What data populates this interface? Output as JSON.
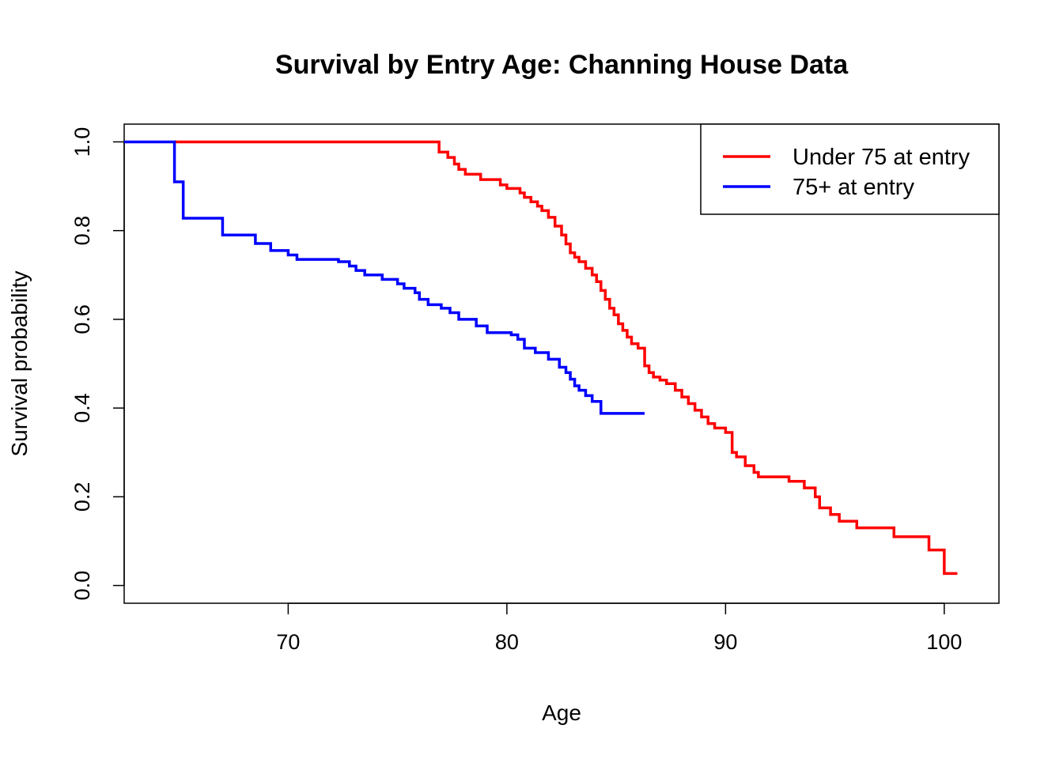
{
  "chart_data": {
    "type": "line",
    "step": true,
    "title": "Survival by Entry Age: Channing House Data",
    "xlabel": "Age",
    "ylabel": "Survival probability",
    "xlim": [
      62.5,
      102.5
    ],
    "ylim": [
      -0.04,
      1.04
    ],
    "x_ticks": [
      70,
      80,
      90,
      100
    ],
    "y_ticks": [
      0.0,
      0.2,
      0.4,
      0.6,
      0.8,
      1.0
    ],
    "x_tick_labels": [
      "70",
      "80",
      "90",
      "100"
    ],
    "y_tick_labels": [
      "0.0",
      "0.2",
      "0.4",
      "0.6",
      "0.8",
      "1.0"
    ],
    "grid": false,
    "legend_position": "top-right",
    "series": [
      {
        "name": "Under 75 at entry",
        "color": "#ff0000",
        "x": [
          64.8,
          76.9,
          77.3,
          77.6,
          77.8,
          78.1,
          78.8,
          79.7,
          80.0,
          80.6,
          80.8,
          81.1,
          81.4,
          81.6,
          81.9,
          82.2,
          82.5,
          82.7,
          82.9,
          83.1,
          83.3,
          83.6,
          83.9,
          84.1,
          84.3,
          84.5,
          84.7,
          84.9,
          85.1,
          85.3,
          85.5,
          85.7,
          86.0,
          86.3,
          86.5,
          86.7,
          87.0,
          87.3,
          87.7,
          88.0,
          88.3,
          88.6,
          88.9,
          89.2,
          89.5,
          90.0,
          90.3,
          90.5,
          90.9,
          91.3,
          91.5,
          92.9,
          93.6,
          94.1,
          94.3,
          94.8,
          95.2,
          96.0,
          97.7,
          99.3,
          100.0,
          100.6
        ],
        "y": [
          1.0,
          0.977,
          0.965,
          0.95,
          0.938,
          0.927,
          0.915,
          0.903,
          0.895,
          0.885,
          0.875,
          0.865,
          0.855,
          0.845,
          0.83,
          0.81,
          0.79,
          0.77,
          0.75,
          0.74,
          0.73,
          0.715,
          0.7,
          0.685,
          0.665,
          0.645,
          0.625,
          0.61,
          0.59,
          0.575,
          0.56,
          0.545,
          0.535,
          0.495,
          0.48,
          0.47,
          0.463,
          0.455,
          0.44,
          0.425,
          0.41,
          0.395,
          0.38,
          0.365,
          0.355,
          0.345,
          0.3,
          0.29,
          0.27,
          0.255,
          0.245,
          0.235,
          0.22,
          0.2,
          0.175,
          0.16,
          0.145,
          0.13,
          0.11,
          0.08,
          0.027,
          0.027
        ]
      },
      {
        "name": "75+ at entry",
        "color": "#0000ff",
        "x": [
          62.5,
          64.8,
          65.2,
          67.0,
          68.5,
          69.2,
          70.0,
          70.4,
          72.3,
          72.8,
          73.1,
          73.5,
          74.3,
          75.0,
          75.3,
          75.8,
          76.0,
          76.4,
          77.0,
          77.4,
          77.8,
          78.6,
          79.1,
          80.2,
          80.5,
          80.8,
          81.3,
          81.9,
          82.4,
          82.7,
          82.9,
          83.1,
          83.3,
          83.6,
          83.9,
          84.3,
          86.3
        ],
        "y": [
          1.0,
          0.91,
          0.828,
          0.79,
          0.771,
          0.755,
          0.745,
          0.735,
          0.73,
          0.72,
          0.71,
          0.7,
          0.69,
          0.68,
          0.67,
          0.66,
          0.645,
          0.633,
          0.625,
          0.615,
          0.6,
          0.585,
          0.57,
          0.565,
          0.555,
          0.535,
          0.525,
          0.51,
          0.492,
          0.48,
          0.465,
          0.45,
          0.44,
          0.428,
          0.415,
          0.388,
          0.388
        ]
      }
    ]
  }
}
